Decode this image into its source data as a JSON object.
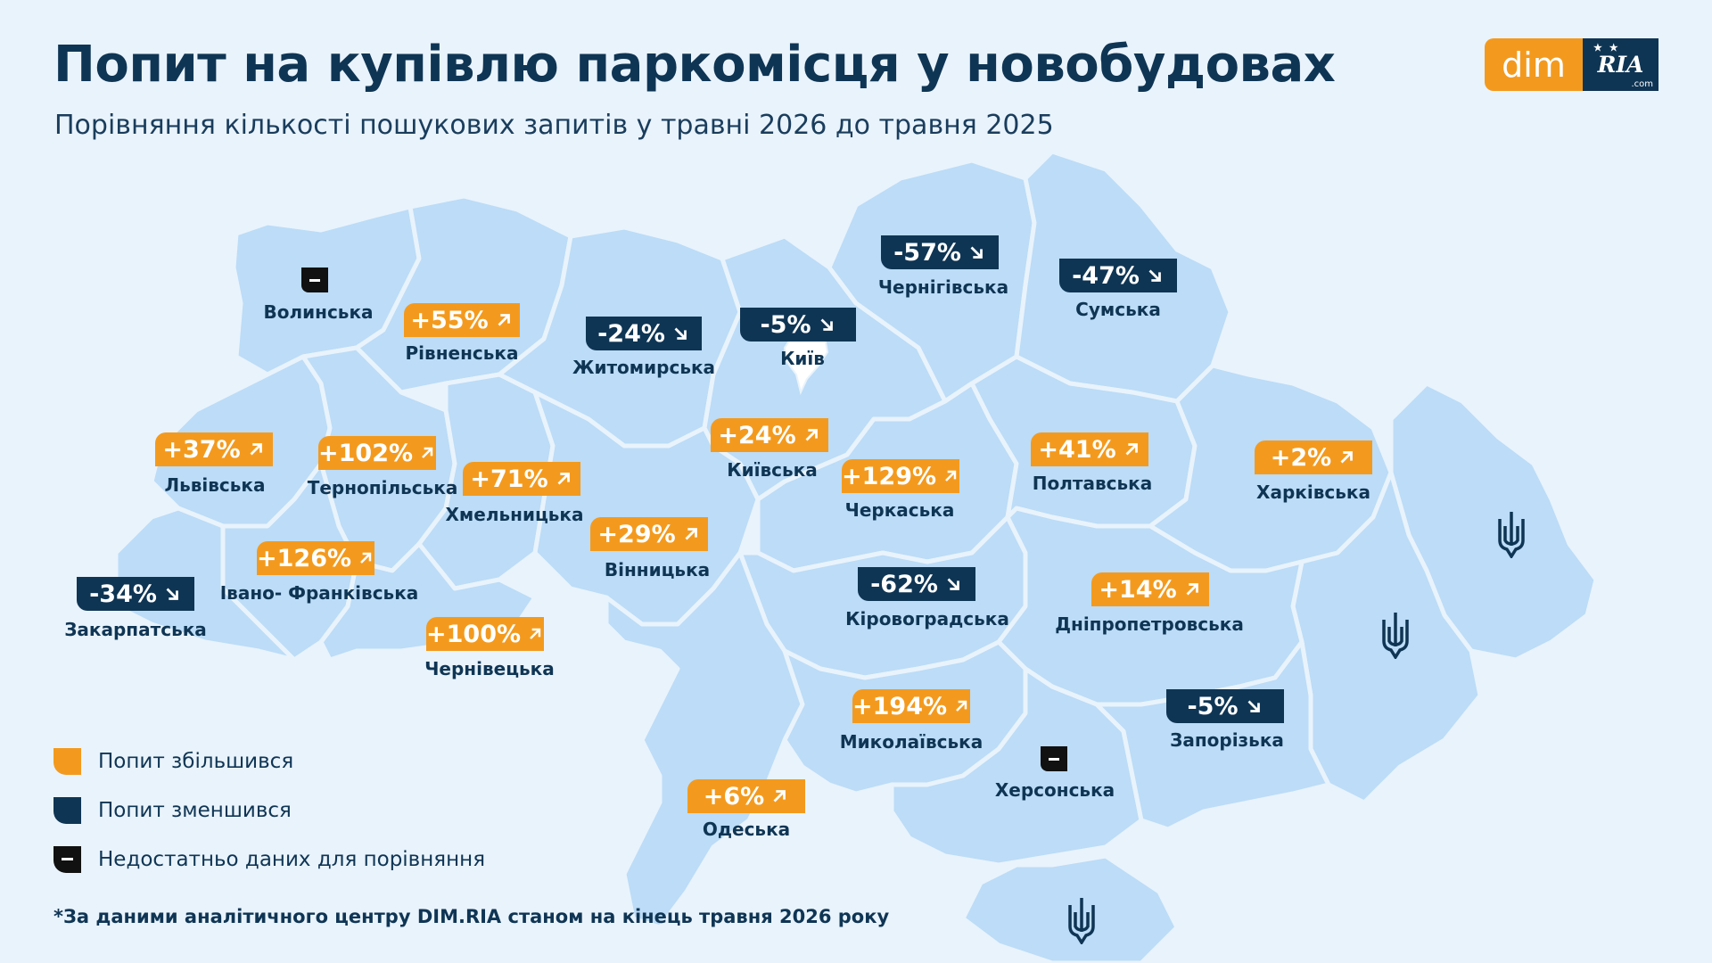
{
  "header": {
    "title": "Попит на купівлю паркомісця у новобудовах",
    "subtitle": "Порівняння кількості пошукових запитів у травні 2026 до травня 2025"
  },
  "logo": {
    "left": "dim",
    "right": "RIA",
    "right_suffix": ".com"
  },
  "colors": {
    "increase": "#f39a1e",
    "decrease": "#0f3554",
    "no_data": "#111111",
    "map_fill": "#bcdcf7",
    "border": "#e9f3fc"
  },
  "regions": [
    {
      "id": "volynska",
      "name": "Волинська",
      "status": "no-data",
      "value": null
    },
    {
      "id": "rivnenska",
      "name": "Рівненська",
      "status": "up",
      "value": "+55%"
    },
    {
      "id": "zhytomyrska",
      "name": "Житомирська",
      "status": "down",
      "value": "-24%"
    },
    {
      "id": "kyiv",
      "name": "Київ",
      "status": "down",
      "value": "-5%"
    },
    {
      "id": "chernihivska",
      "name": "Чернігівська",
      "status": "down",
      "value": "-57%"
    },
    {
      "id": "sumska",
      "name": "Сумська",
      "status": "down",
      "value": "-47%"
    },
    {
      "id": "lvivska",
      "name": "Львівська",
      "status": "up",
      "value": "+37%"
    },
    {
      "id": "ternopilska",
      "name": "Тернопільська",
      "status": "up",
      "value": "+102%"
    },
    {
      "id": "khmelnytska",
      "name": "Хмельницька",
      "status": "up",
      "value": "+71%"
    },
    {
      "id": "kyivska",
      "name": "Київська",
      "status": "up",
      "value": "+24%"
    },
    {
      "id": "cherkaska",
      "name": "Черкаська",
      "status": "up",
      "value": "+129%"
    },
    {
      "id": "poltavska",
      "name": "Полтавська",
      "status": "up",
      "value": "+41%"
    },
    {
      "id": "kharkivska",
      "name": "Харківська",
      "status": "up",
      "value": "+2%"
    },
    {
      "id": "vinnytska",
      "name": "Вінницька",
      "status": "up",
      "value": "+29%"
    },
    {
      "id": "ivano-frankivska",
      "name": "Івано- Франківська",
      "status": "up",
      "value": "+126%"
    },
    {
      "id": "zakarpatska",
      "name": "Закарпатська",
      "status": "down",
      "value": "-34%"
    },
    {
      "id": "kirovohradska",
      "name": "Кіровоградська",
      "status": "down",
      "value": "-62%"
    },
    {
      "id": "dnipropetrovska",
      "name": "Дніпропетровська",
      "status": "up",
      "value": "+14%"
    },
    {
      "id": "chernivetska",
      "name": "Чернівецька",
      "status": "up",
      "value": "+100%"
    },
    {
      "id": "mykolaivska",
      "name": "Миколаївська",
      "status": "up",
      "value": "+194%"
    },
    {
      "id": "zaporizka",
      "name": "Запорізька",
      "status": "down",
      "value": "-5%"
    },
    {
      "id": "khersonska",
      "name": "Херсонська",
      "status": "no-data",
      "value": null
    },
    {
      "id": "odeska",
      "name": "Одеська",
      "status": "up",
      "value": "+6%"
    }
  ],
  "legend": {
    "up": "Попит збільшився",
    "down": "Попит зменшився",
    "none": "Недостатньо даних для порівняння"
  },
  "footnote": "*За даними аналітичного центру DIM.RIA станом на кінець травня 2026 року",
  "icons": [
    "arrow-up-right-icon",
    "arrow-down-right-icon",
    "minus-icon",
    "trident-icon"
  ]
}
